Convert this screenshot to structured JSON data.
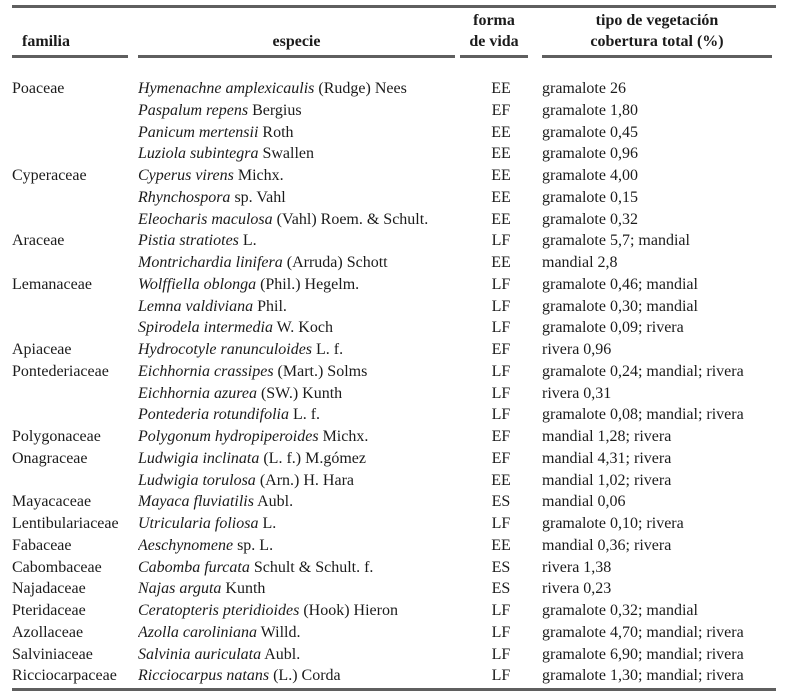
{
  "table": {
    "headers": {
      "familia": "familia",
      "especie": "especie",
      "forma_line1": "forma",
      "forma_line2": "de vida",
      "tipo_line1": "tipo de vegetación",
      "tipo_line2": "cobertura total (%)"
    },
    "colors": {
      "rule": "#5f5f5f",
      "text": "#1b1b1b",
      "background": "#ffffff"
    },
    "rows": [
      {
        "familia": "Poaceae",
        "sp_i": "Hymenachne amplexicaulis",
        "sp_r": " (Rudge) Nees",
        "forma": "EE",
        "tipo": "gramalote 26"
      },
      {
        "familia": "",
        "sp_i": "Paspalum repens",
        "sp_r": " Bergius",
        "forma": "EF",
        "tipo": "gramalote 1,80"
      },
      {
        "familia": "",
        "sp_i": "Panicum mertensii",
        "sp_r": " Roth",
        "forma": "EE",
        "tipo": "gramalote 0,45"
      },
      {
        "familia": "",
        "sp_i": "Luziola subintegra",
        "sp_r": " Swallen",
        "forma": "EE",
        "tipo": "gramalote 0,96"
      },
      {
        "familia": "Cyperaceae",
        "sp_i": "Cyperus virens",
        "sp_r": " Michx.",
        "forma": "EE",
        "tipo": "gramalote 4,00"
      },
      {
        "familia": "",
        "sp_i": "Rhynchospora",
        "sp_r": " sp. Vahl",
        "forma": "EE",
        "tipo": "gramalote 0,15"
      },
      {
        "familia": "",
        "sp_i": "Eleocharis maculosa",
        "sp_r": " (Vahl) Roem. & Schult.",
        "forma": "EE",
        "tipo": "gramalote 0,32"
      },
      {
        "familia": "Araceae",
        "sp_i": "Pistia stratiotes",
        "sp_r": " L.",
        "forma": "LF",
        "tipo": "gramalote 5,7; mandial"
      },
      {
        "familia": "",
        "sp_i": "Montrichardia linifera",
        "sp_r": " (Arruda) Schott",
        "forma": "EE",
        "tipo": "mandial 2,8"
      },
      {
        "familia": "Lemanaceae",
        "sp_i": "Wolffiella oblonga",
        "sp_r": " (Phil.) Hegelm.",
        "forma": "LF",
        "tipo": "gramalote 0,46; mandial"
      },
      {
        "familia": "",
        "sp_i": "Lemna valdiviana",
        "sp_r": " Phil.",
        "forma": "LF",
        "tipo": "gramalote 0,30; mandial"
      },
      {
        "familia": "",
        "sp_i": "Spirodela intermedia",
        "sp_r": " W. Koch",
        "forma": "LF",
        "tipo": "gramalote 0,09; rivera"
      },
      {
        "familia": "Apiaceae",
        "sp_i": "Hydrocotyle ranunculoides",
        "sp_r": " L. f.",
        "forma": "EF",
        "tipo": "rivera 0,96"
      },
      {
        "familia": "Pontederiaceae",
        "sp_i": "Eichhornia crassipes",
        "sp_r": " (Mart.) Solms",
        "forma": "LF",
        "tipo": "gramalote 0,24; mandial; rivera"
      },
      {
        "familia": "",
        "sp_i": "Eichhornia azurea",
        "sp_r": " (SW.) Kunth",
        "forma": "LF",
        "tipo": "rivera 0,31"
      },
      {
        "familia": "",
        "sp_i": "Pontederia rotundifolia",
        "sp_r": " L. f.",
        "forma": "LF",
        "tipo": "gramalote 0,08; mandial; rivera"
      },
      {
        "familia": "Polygonaceae",
        "sp_i": "Polygonum hydropiperoides",
        "sp_r": " Michx.",
        "forma": "EF",
        "tipo": "mandial 1,28; rivera"
      },
      {
        "familia": "Onagraceae",
        "sp_i": "Ludwigia inclinata",
        "sp_r": " (L. f.) M.gómez",
        "forma": "EF",
        "tipo": "mandial 4,31; rivera"
      },
      {
        "familia": "",
        "sp_i": "Ludwigia torulosa",
        "sp_r": " (Arn.) H. Hara",
        "forma": "EE",
        "tipo": "mandial 1,02; rivera"
      },
      {
        "familia": "Mayacaceae",
        "sp_i": "Mayaca fluviatilis",
        "sp_r": " Aubl.",
        "forma": "ES",
        "tipo": "mandial 0,06"
      },
      {
        "familia": "Lentibulariaceae",
        "sp_i": "Utricularia foliosa",
        "sp_r": " L.",
        "forma": "LF",
        "tipo": "gramalote 0,10; rivera"
      },
      {
        "familia": "Fabaceae",
        "sp_i": "Aeschynomene",
        "sp_r": " sp. L.",
        "forma": "EE",
        "tipo": "mandial 0,36; rivera"
      },
      {
        "familia": "Cabombaceae",
        "sp_i": "Cabomba furcata",
        "sp_r": " Schult & Schult. f.",
        "forma": "ES",
        "tipo": "rivera 1,38"
      },
      {
        "familia": "Najadaceae",
        "sp_i": "Najas arguta",
        "sp_r": " Kunth",
        "forma": "ES",
        "tipo": "rivera 0,23"
      },
      {
        "familia": "Pteridaceae",
        "sp_i": "Ceratopteris pteridioides",
        "sp_r": " (Hook) Hieron",
        "forma": "LF",
        "tipo": "gramalote 0,32; mandial"
      },
      {
        "familia": "Azollaceae",
        "sp_i": "Azolla caroliniana",
        "sp_r": " Willd.",
        "forma": "LF",
        "tipo": "gramalote 4,70; mandial; rivera"
      },
      {
        "familia": "Salviniaceae",
        "sp_i": "Salvinia auriculata",
        "sp_r": " Aubl.",
        "forma": "LF",
        "tipo": "gramalote 6,90; mandial; rivera"
      },
      {
        "familia": "Ricciocarpaceae",
        "sp_i": "Ricciocarpus natans",
        "sp_r": " (L.) Corda",
        "forma": "LF",
        "tipo": "gramalote 1,30; mandial; rivera"
      }
    ]
  }
}
